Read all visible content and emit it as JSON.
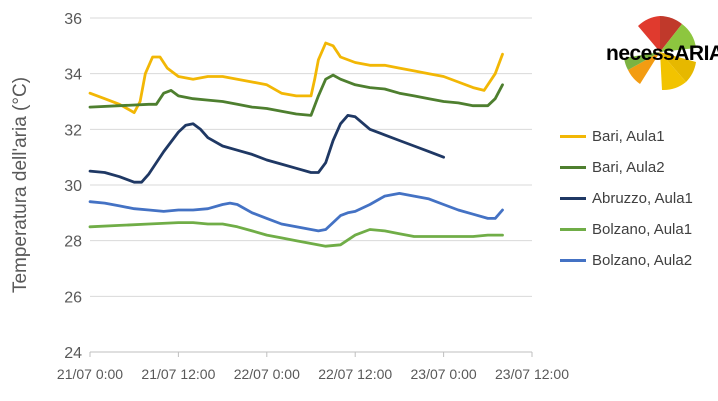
{
  "chart_data": {
    "type": "line",
    "title": "",
    "xlabel": "",
    "ylabel": "Temperatura dell'aria (°C)",
    "ylim": [
      24,
      36
    ],
    "yticks": [
      24,
      26,
      28,
      30,
      32,
      34,
      36
    ],
    "xlim": [
      0,
      60
    ],
    "xticks": [
      0,
      12,
      24,
      36,
      48,
      60
    ],
    "xtick_labels": [
      "21/07 0:00",
      "21/07 12:00",
      "22/07 0:00",
      "22/07 12:00",
      "23/07 0:00",
      "23/07 12:00"
    ],
    "x_unit": "hours since 21/07 0:00",
    "grid": "horizontal",
    "legend_position": "right",
    "series": [
      {
        "name": "Bari, Aula1",
        "color": "#F2B705",
        "x": [
          0,
          2,
          4,
          6,
          6.8,
          7.5,
          8.5,
          9.5,
          10.5,
          12,
          14,
          16,
          18,
          20,
          22,
          24,
          26,
          28,
          30,
          30.5,
          31,
          32,
          33,
          34,
          36,
          38,
          40,
          42,
          44,
          46,
          48,
          50,
          52,
          53.5,
          55,
          56
        ],
        "values": [
          33.3,
          33.1,
          32.9,
          32.6,
          33.0,
          34.0,
          34.6,
          34.6,
          34.2,
          33.9,
          33.8,
          33.9,
          33.9,
          33.8,
          33.7,
          33.6,
          33.3,
          33.2,
          33.2,
          33.8,
          34.5,
          35.1,
          35.0,
          34.6,
          34.4,
          34.3,
          34.3,
          34.2,
          34.1,
          34.0,
          33.9,
          33.7,
          33.5,
          33.4,
          34.0,
          34.7
        ]
      },
      {
        "name": "Bari, Aula2",
        "color": "#4E7F2F",
        "x": [
          0,
          4,
          8,
          9,
          10,
          11,
          12,
          14,
          16,
          18,
          20,
          22,
          24,
          26,
          28,
          30,
          31,
          32,
          33,
          34,
          36,
          38,
          40,
          42,
          44,
          46,
          48,
          50,
          52,
          54,
          55,
          56
        ],
        "values": [
          32.8,
          32.85,
          32.9,
          32.9,
          33.3,
          33.4,
          33.2,
          33.1,
          33.05,
          33.0,
          32.9,
          32.8,
          32.75,
          32.65,
          32.55,
          32.5,
          33.2,
          33.8,
          33.95,
          33.8,
          33.6,
          33.5,
          33.45,
          33.3,
          33.2,
          33.1,
          33.0,
          32.95,
          32.85,
          32.85,
          33.1,
          33.6
        ]
      },
      {
        "name": "Abruzzo, Aula1",
        "color": "#1F3864",
        "x": [
          0,
          2,
          4,
          6,
          7,
          8,
          10,
          12,
          13,
          14,
          15,
          16,
          18,
          20,
          22,
          24,
          26,
          28,
          30,
          31,
          32,
          33,
          34,
          35,
          36,
          38,
          40,
          42,
          44,
          46,
          48
        ],
        "values": [
          30.5,
          30.45,
          30.3,
          30.1,
          30.1,
          30.4,
          31.2,
          31.9,
          32.15,
          32.2,
          32.0,
          31.7,
          31.4,
          31.25,
          31.1,
          30.9,
          30.75,
          30.6,
          30.45,
          30.45,
          30.8,
          31.6,
          32.2,
          32.5,
          32.45,
          32.0,
          31.8,
          31.6,
          31.4,
          31.2,
          31.0
        ]
      },
      {
        "name": "Bolzano, Aula1",
        "color": "#70AD47",
        "x": [
          0,
          4,
          8,
          12,
          14,
          16,
          18,
          20,
          22,
          24,
          26,
          28,
          30,
          32,
          34,
          36,
          38,
          40,
          42,
          44,
          46,
          48,
          50,
          52,
          54,
          56
        ],
        "values": [
          28.5,
          28.55,
          28.6,
          28.65,
          28.65,
          28.6,
          28.6,
          28.5,
          28.35,
          28.2,
          28.1,
          28.0,
          27.9,
          27.8,
          27.85,
          28.2,
          28.4,
          28.35,
          28.25,
          28.15,
          28.15,
          28.15,
          28.15,
          28.15,
          28.2,
          28.2
        ]
      },
      {
        "name": "Bolzano, Aula2",
        "color": "#4472C4",
        "x": [
          0,
          2,
          4,
          6,
          8,
          10,
          12,
          14,
          16,
          18,
          19,
          20,
          22,
          24,
          26,
          28,
          30,
          31,
          32,
          34,
          35,
          36,
          38,
          40,
          42,
          44,
          46,
          48,
          50,
          52,
          54,
          55,
          56
        ],
        "values": [
          29.4,
          29.35,
          29.25,
          29.15,
          29.1,
          29.05,
          29.1,
          29.1,
          29.15,
          29.3,
          29.35,
          29.3,
          29.0,
          28.8,
          28.6,
          28.5,
          28.4,
          28.35,
          28.4,
          28.9,
          29.0,
          29.05,
          29.3,
          29.6,
          29.7,
          29.6,
          29.5,
          29.3,
          29.1,
          28.95,
          28.8,
          28.8,
          29.1
        ]
      }
    ]
  },
  "logo": {
    "text_prefix": "necess",
    "text_suffix": "ARIA"
  }
}
